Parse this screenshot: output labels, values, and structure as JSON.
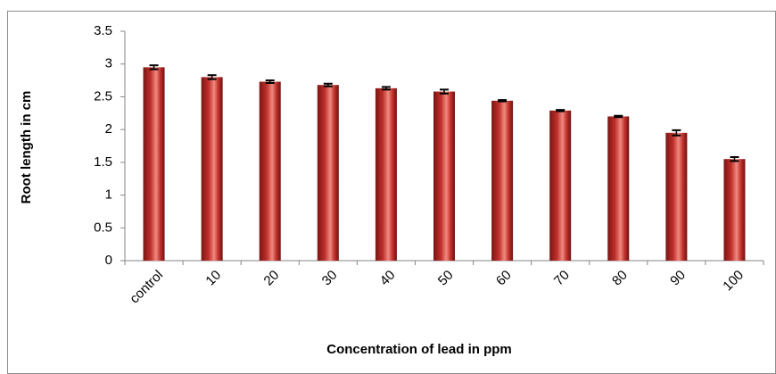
{
  "chart_data": {
    "type": "bar",
    "categories": [
      "control",
      "10",
      "20",
      "30",
      "40",
      "50",
      "60",
      "70",
      "80",
      "90",
      "100"
    ],
    "values": [
      2.95,
      2.8,
      2.73,
      2.68,
      2.63,
      2.58,
      2.44,
      2.29,
      2.2,
      1.95,
      1.55
    ],
    "errors": [
      0.03,
      0.03,
      0.02,
      0.02,
      0.02,
      0.03,
      0.01,
      0.01,
      0.01,
      0.04,
      0.03
    ],
    "color": "#c0302c",
    "ylim": [
      0,
      3.5
    ],
    "yticks": [
      0,
      0.5,
      1,
      1.5,
      2,
      2.5,
      3,
      3.5
    ],
    "y_label": "Root length in cm",
    "x_label": "Concentration of lead in ppm",
    "grid": false
  }
}
